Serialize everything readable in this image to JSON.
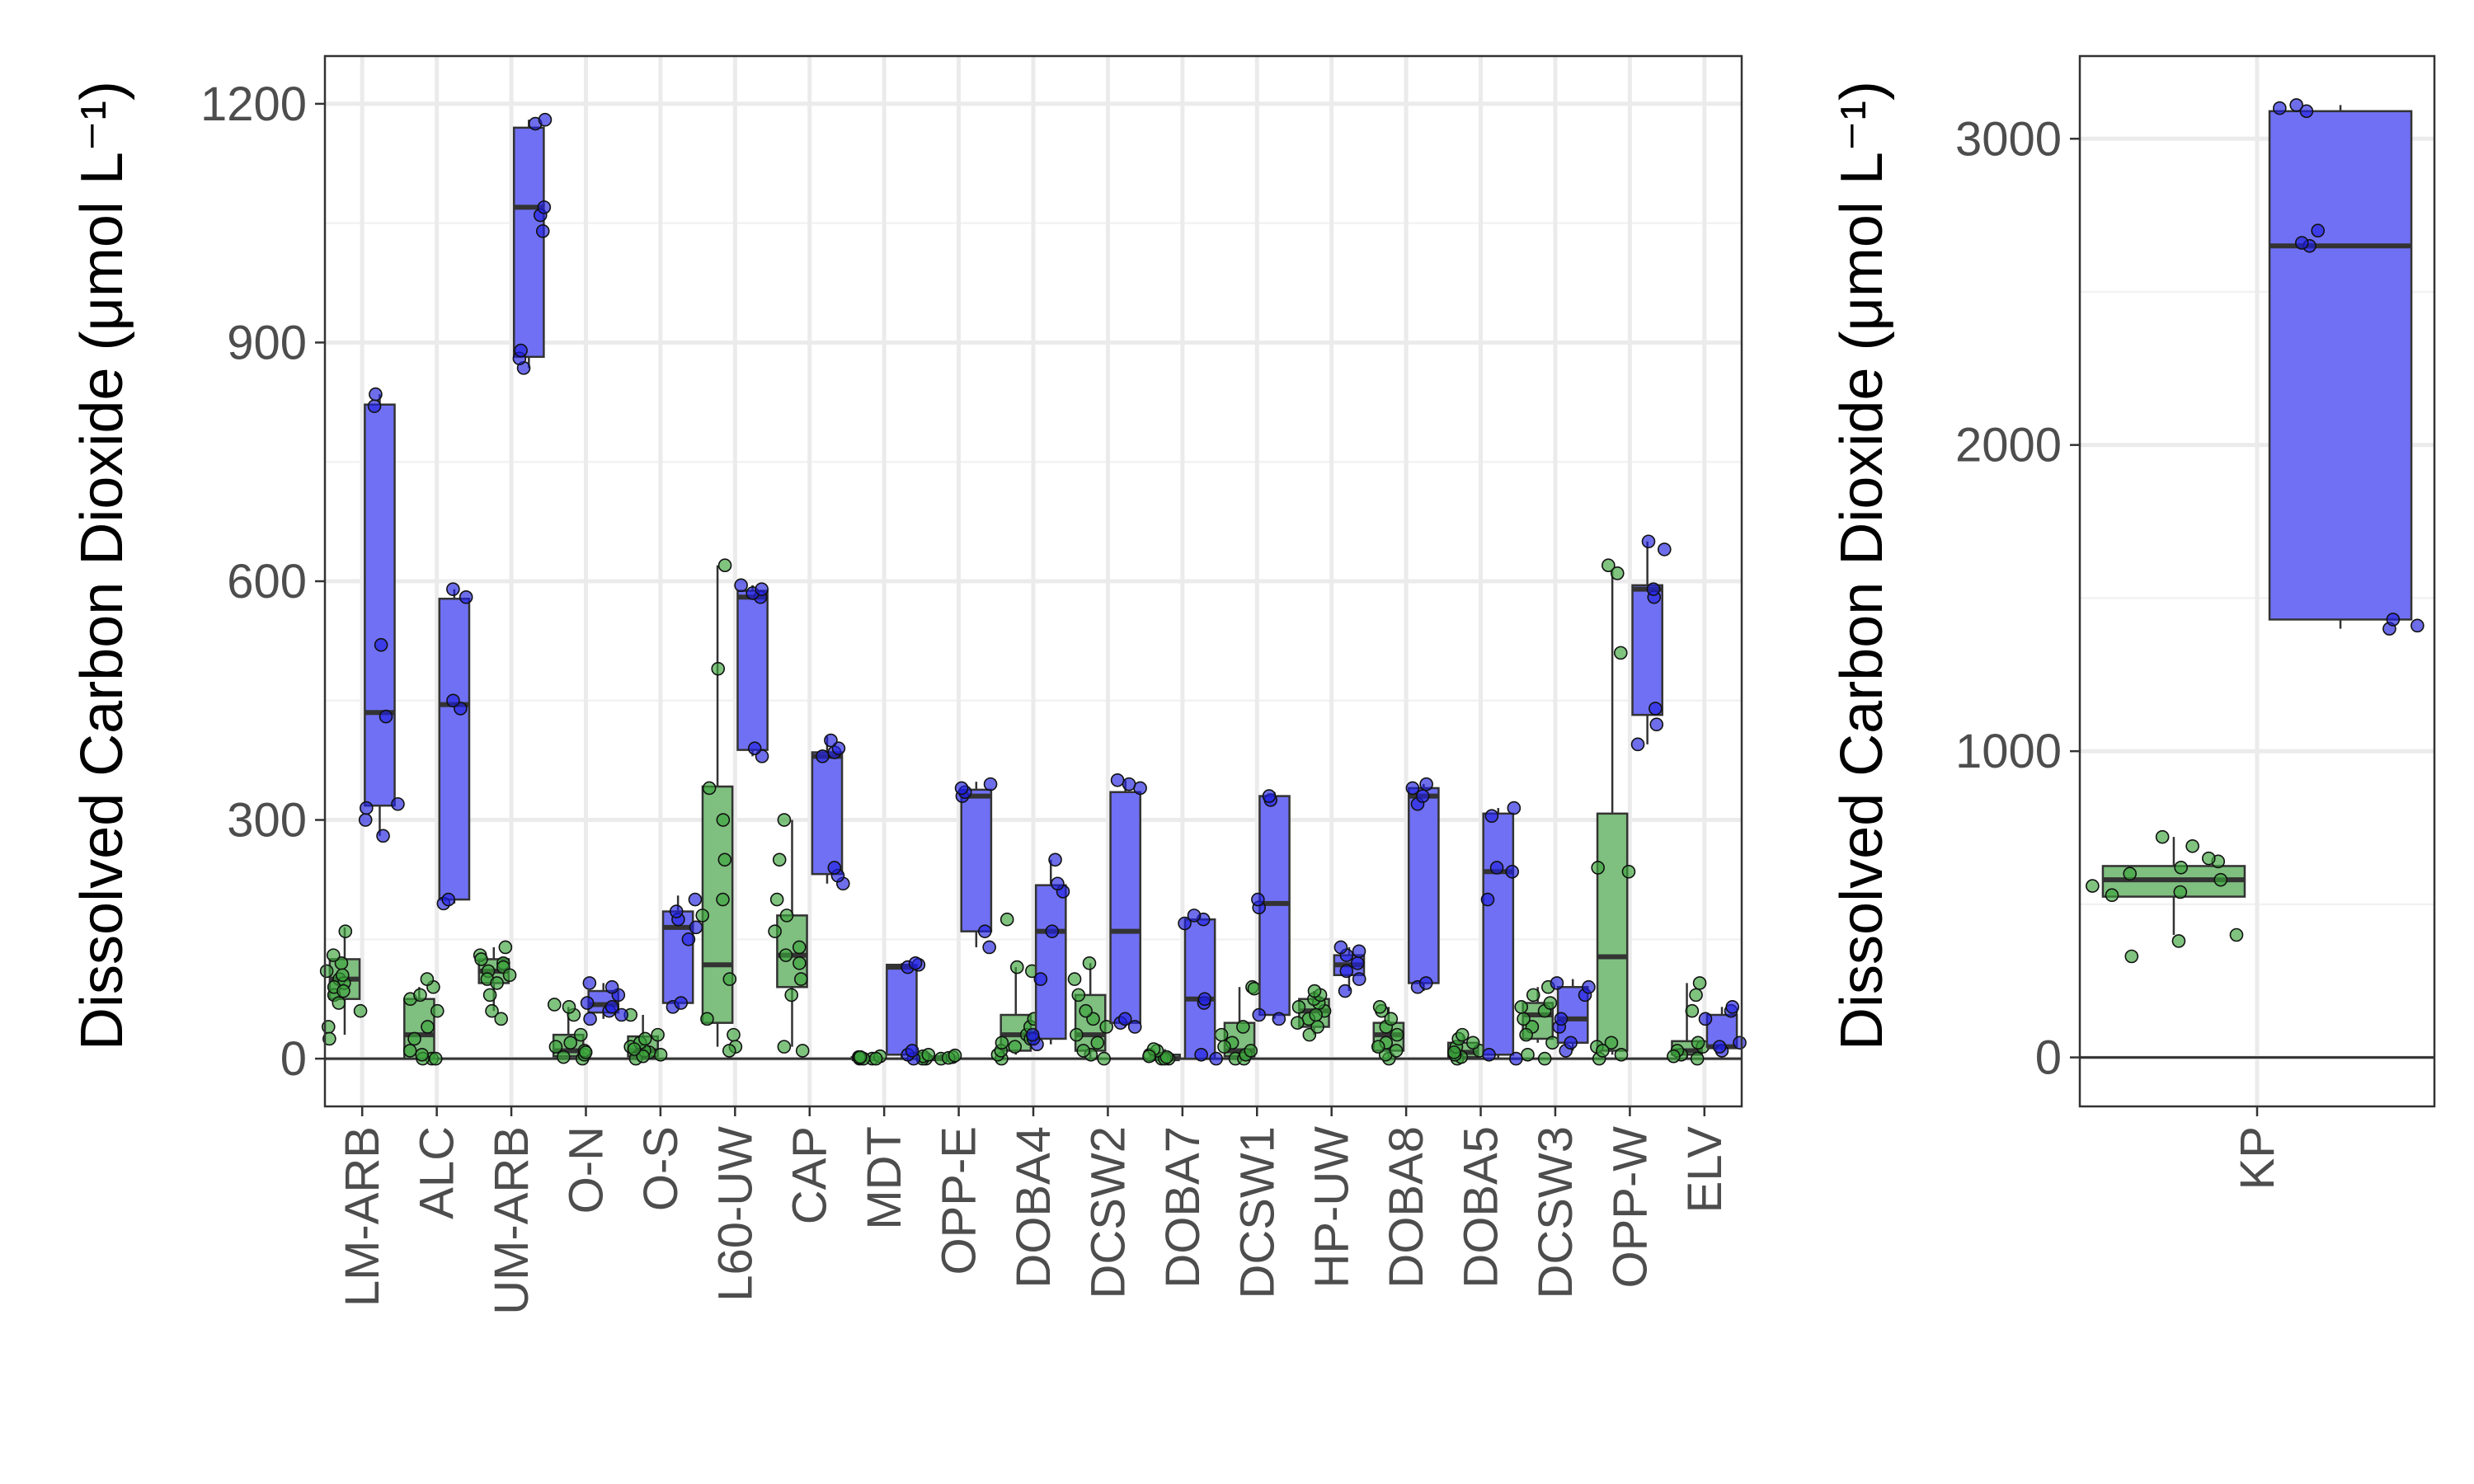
{
  "colors": {
    "land": "#7fbf7f",
    "water": "#7070f5",
    "land_pt": "#3aa33a",
    "water_pt": "#2020e0",
    "line": "#333333"
  },
  "chart_data": [
    {
      "type": "box",
      "ylabel": "Dissolved Carbon Dioxide (μmol L⁻¹)",
      "ylim": [
        -60,
        1260
      ],
      "yticks": [
        0,
        300,
        600,
        900,
        1200
      ],
      "grid": true,
      "categories": [
        "LM-ARB",
        "ALC",
        "UM-ARB",
        "O-N",
        "O-S",
        "L60-UW",
        "CAP",
        "MDT",
        "OPP-E",
        "DOBA4",
        "DCSW2",
        "DOBA7",
        "DCSW1",
        "HP-UW",
        "DOBA8",
        "DOBA5",
        "DCSW3",
        "OPP-W",
        "ELV"
      ],
      "series": [
        {
          "color_key": "land",
          "boxes": [
            {
              "min": 30,
              "q1": 75,
              "median": 100,
              "q3": 125,
              "max": 165
            },
            {
              "min": 0,
              "q1": 0,
              "median": 30,
              "q3": 75,
              "max": 90
            },
            {
              "min": 60,
              "q1": 95,
              "median": 110,
              "q3": 125,
              "max": 140
            },
            {
              "min": 0,
              "q1": 3,
              "median": 10,
              "q3": 30,
              "max": 65
            },
            {
              "min": 0,
              "q1": 3,
              "median": 10,
              "q3": 28,
              "max": 55
            },
            {
              "min": 15,
              "q1": 45,
              "median": 118,
              "q3": 342,
              "max": 620
            },
            {
              "min": 15,
              "q1": 90,
              "median": 130,
              "q3": 180,
              "max": 300
            },
            {
              "min": 0,
              "q1": 0,
              "median": 0,
              "q3": 2,
              "max": 4
            },
            {
              "min": 0,
              "q1": 0,
              "median": 0,
              "q3": 3,
              "max": 6
            },
            {
              "min": 5,
              "q1": 10,
              "median": 30,
              "q3": 55,
              "max": 115
            },
            {
              "min": 0,
              "q1": 10,
              "median": 30,
              "q3": 80,
              "max": 120
            },
            {
              "min": 0,
              "q1": 0,
              "median": 0,
              "q3": 5,
              "max": 12
            },
            {
              "min": 0,
              "q1": 3,
              "median": 10,
              "q3": 45,
              "max": 90
            },
            {
              "min": 30,
              "q1": 40,
              "median": 60,
              "q3": 75,
              "max": 85
            },
            {
              "min": 0,
              "q1": 10,
              "median": 30,
              "q3": 45,
              "max": 65
            },
            {
              "min": 0,
              "q1": 2,
              "median": 8,
              "q3": 20,
              "max": 30
            },
            {
              "min": 20,
              "q1": 25,
              "median": 55,
              "q3": 70,
              "max": 90
            },
            {
              "min": 5,
              "q1": 10,
              "median": 128,
              "q3": 308,
              "max": 615
            },
            {
              "min": 0,
              "q1": 5,
              "median": 10,
              "q3": 22,
              "max": 95
            }
          ],
          "points": [
            [
              160,
              120,
              110,
              100,
              95,
              80,
              70,
              60,
              40,
              25,
              130,
              90,
              105,
              85
            ],
            [
              0,
              0,
              0,
              25,
              40,
              60,
              75,
              80,
              90,
              100,
              10,
              5
            ],
            [
              140,
              130,
              125,
              120,
              110,
              100,
              95,
              80,
              60,
              50,
              115,
              105
            ],
            [
              0,
              5,
              10,
              15,
              20,
              30,
              55,
              65,
              68,
              2,
              8
            ],
            [
              0,
              5,
              8,
              10,
              15,
              20,
              25,
              30,
              55,
              3,
              12
            ],
            [
              620,
              490,
              340,
              250,
              200,
              100,
              50,
              30,
              15,
              10,
              300,
              180
            ],
            [
              300,
              250,
              200,
              160,
              140,
              130,
              120,
              100,
              80,
              15,
              10,
              180
            ],
            [
              0,
              0,
              0,
              2,
              3,
              1,
              0,
              2
            ],
            [
              0,
              0,
              0,
              2,
              3,
              5,
              1,
              4
            ],
            [
              0,
              5,
              10,
              20,
              30,
              40,
              50,
              110,
              115,
              175,
              15,
              25
            ],
            [
              0,
              5,
              10,
              20,
              30,
              50,
              80,
              100,
              120,
              60,
              40
            ],
            [
              0,
              0,
              0,
              2,
              5,
              10,
              12,
              3
            ],
            [
              0,
              0,
              5,
              10,
              20,
              30,
              40,
              90,
              88,
              15
            ],
            [
              30,
              40,
              50,
              60,
              70,
              75,
              80,
              85,
              45,
              65,
              55
            ],
            [
              0,
              5,
              20,
              30,
              40,
              50,
              60,
              65,
              15,
              10
            ],
            [
              0,
              2,
              5,
              10,
              15,
              20,
              25,
              30,
              8
            ],
            [
              0,
              5,
              20,
              40,
              50,
              60,
              70,
              80,
              90,
              30,
              65
            ],
            [
              620,
              610,
              510,
              240,
              235,
              20,
              15,
              5,
              0,
              10
            ],
            [
              0,
              5,
              10,
              80,
              95,
              60,
              15,
              20,
              3
            ]
          ]
        },
        {
          "color_key": "water",
          "boxes": [
            {
              "min": 280,
              "q1": 318,
              "median": 435,
              "q3": 822,
              "max": 835
            },
            {
              "min": 195,
              "q1": 200,
              "median": 445,
              "q3": 578,
              "max": 590
            },
            {
              "min": 868,
              "q1": 882,
              "median": 1070,
              "q3": 1170,
              "max": 1180
            },
            {
              "min": 50,
              "q1": 58,
              "median": 68,
              "q3": 85,
              "max": 95
            },
            {
              "min": 65,
              "q1": 70,
              "median": 165,
              "q3": 185,
              "max": 205
            },
            {
              "min": 380,
              "q1": 388,
              "median": 580,
              "q3": 588,
              "max": 595
            },
            {
              "min": 220,
              "q1": 232,
              "median": 380,
              "q3": 385,
              "max": 405
            },
            {
              "min": 0,
              "q1": 5,
              "median": 115,
              "q3": 118,
              "max": 120
            },
            {
              "min": 140,
              "q1": 160,
              "median": 330,
              "q3": 338,
              "max": 348
            },
            {
              "min": 18,
              "q1": 25,
              "median": 160,
              "q3": 218,
              "max": 250
            },
            {
              "min": 40,
              "q1": 45,
              "median": 160,
              "q3": 335,
              "max": 350
            },
            {
              "min": 0,
              "q1": 0,
              "median": 75,
              "q3": 175,
              "max": 180
            },
            {
              "min": 50,
              "q1": 55,
              "median": 195,
              "q3": 330,
              "max": 335
            },
            {
              "min": 85,
              "q1": 105,
              "median": 118,
              "q3": 130,
              "max": 140
            },
            {
              "min": 85,
              "q1": 95,
              "median": 330,
              "q3": 340,
              "max": 345
            },
            {
              "min": 0,
              "q1": 5,
              "median": 235,
              "q3": 308,
              "max": 315
            },
            {
              "min": 10,
              "q1": 20,
              "median": 50,
              "q3": 90,
              "max": 100
            },
            {
              "min": 395,
              "q1": 432,
              "median": 590,
              "q3": 595,
              "max": 650
            },
            {
              "min": 10,
              "q1": 15,
              "median": 15,
              "q3": 55,
              "max": 65
            }
          ],
          "points": [
            [
              280,
              300,
              315,
              320,
              430,
              520,
              820,
              835
            ],
            [
              195,
              200,
              440,
              450,
              580,
              590
            ],
            [
              868,
              880,
              890,
              1040,
              1060,
              1070,
              1175,
              1180
            ],
            [
              50,
              55,
              60,
              65,
              70,
              80,
              90,
              95
            ],
            [
              65,
              70,
              150,
              165,
              175,
              185,
              200
            ],
            [
              380,
              390,
              580,
              585,
              590,
              595
            ],
            [
              220,
              230,
              240,
              380,
              385,
              390,
              400
            ],
            [
              0,
              5,
              10,
              115,
              118,
              120
            ],
            [
              140,
              160,
              330,
              335,
              340,
              345
            ],
            [
              18,
              25,
              30,
              100,
              160,
              210,
              220,
              250
            ],
            [
              40,
              45,
              50,
              340,
              345,
              350
            ],
            [
              0,
              5,
              70,
              75,
              170,
              175,
              180
            ],
            [
              50,
              55,
              190,
              200,
              325,
              330
            ],
            [
              85,
              100,
              110,
              120,
              130,
              135,
              140
            ],
            [
              90,
              95,
              320,
              330,
              340,
              345
            ],
            [
              0,
              5,
              200,
              235,
              240,
              305,
              315
            ],
            [
              10,
              20,
              40,
              50,
              80,
              90,
              95
            ],
            [
              395,
              420,
              440,
              580,
              590,
              640,
              650
            ],
            [
              10,
              15,
              20,
              50,
              60,
              65
            ]
          ]
        }
      ]
    },
    {
      "type": "box",
      "ylabel": "Dissolved Carbon Dioxide (μmol L⁻¹)",
      "ylim": [
        -160,
        3270
      ],
      "yticks": [
        0,
        1000,
        2000,
        3000
      ],
      "grid": true,
      "categories": [
        "KP"
      ],
      "series": [
        {
          "color_key": "land",
          "boxes": [
            {
              "min": 400,
              "q1": 525,
              "median": 580,
              "q3": 625,
              "max": 720
            }
          ],
          "points": [
            [
              330,
              380,
              400,
              530,
              540,
              560,
              580,
              600,
              620,
              640,
              650,
              690,
              720
            ]
          ]
        },
        {
          "color_key": "water",
          "boxes": [
            {
              "min": 1400,
              "q1": 1430,
              "median": 2650,
              "q3": 3090,
              "max": 3110
            }
          ],
          "points": [
            [
              1400,
              1410,
              1430,
              2650,
              2660,
              2700,
              3090,
              3100,
              3110
            ]
          ]
        }
      ]
    }
  ]
}
